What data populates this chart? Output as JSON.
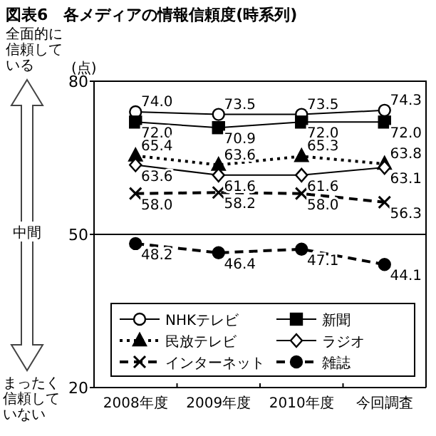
{
  "chart_data": {
    "type": "line",
    "title": "図表6　各メディアの情報信頼度(時系列)",
    "ylabel": "(点)",
    "categories": [
      "2008年度",
      "2009年度",
      "2010年度",
      "今回調査"
    ],
    "ylim": [
      20,
      80
    ],
    "yticks": [
      20,
      50,
      80
    ],
    "grid": false,
    "legend": "bottom",
    "ref_lines": [
      {
        "axis": "y",
        "value": 50,
        "color": "#000000"
      }
    ],
    "annotations": [
      "全面的に信頼している",
      "中間",
      "まったく信頼していない"
    ],
    "series": [
      {
        "name": "NHKテレビ",
        "color": "#000000",
        "marker": "circle",
        "line_style": "solid",
        "values": [
          74.0,
          73.5,
          73.5,
          74.3
        ],
        "value_labels": [
          "74.0",
          "73.5",
          "73.5",
          "74.3"
        ]
      },
      {
        "name": "新聞",
        "color": "#000000",
        "marker": "square",
        "line_style": "solid",
        "values": [
          72.0,
          70.9,
          72.0,
          72.0
        ],
        "value_labels": [
          "72.0",
          "70.9",
          "72.0",
          "72.0"
        ]
      },
      {
        "name": "民放テレビ",
        "color": "#000000",
        "marker": "triangle",
        "line_style": "dotted",
        "values": [
          65.4,
          63.6,
          65.3,
          63.8
        ],
        "value_labels": [
          "65.4",
          "63.6",
          "65.3",
          "63.8"
        ]
      },
      {
        "name": "ラジオ",
        "color": "#000000",
        "marker": "diamond",
        "line_style": "solid",
        "values": [
          63.6,
          61.6,
          61.6,
          63.1
        ],
        "value_labels": [
          "63.6",
          "61.6",
          "61.6",
          "63.1"
        ]
      },
      {
        "name": "インターネット",
        "color": "#000000",
        "marker": "cross",
        "line_style": "dashed",
        "values": [
          58.0,
          58.2,
          58.0,
          56.3
        ],
        "value_labels": [
          "58.0",
          "58.2",
          "58.0",
          "56.3"
        ]
      },
      {
        "name": "雑誌",
        "color": "#000000",
        "marker": "circle",
        "line_style": "dashed",
        "values": [
          48.2,
          46.4,
          47.1,
          44.1
        ],
        "value_labels": [
          "48.2",
          "46.4",
          "47.1",
          "44.1"
        ]
      }
    ]
  }
}
